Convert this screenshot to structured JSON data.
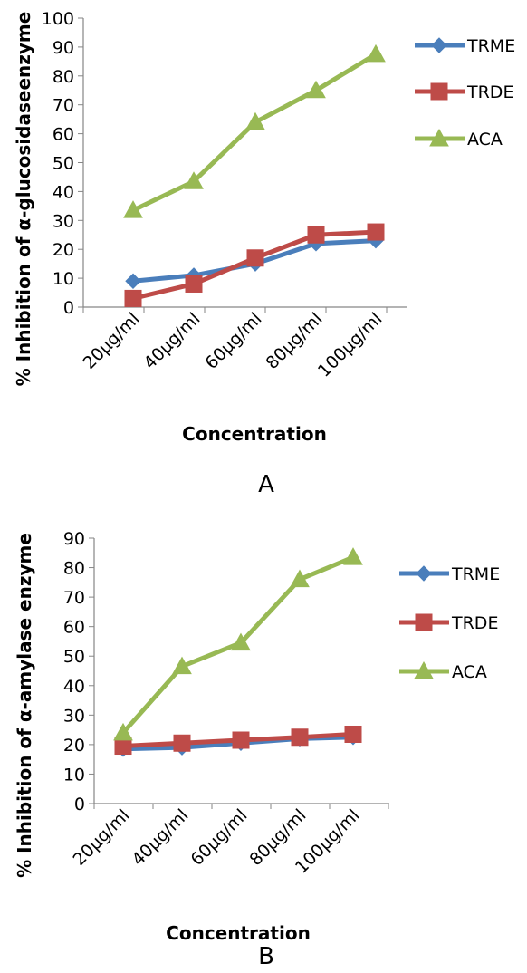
{
  "chart_data": [
    {
      "type": "line",
      "categories": [
        "20µg/ml",
        "40µg/ml",
        "60µg/ml",
        "80µg/ml",
        "100µg/ml"
      ],
      "series": [
        {
          "name": "TRME",
          "values": [
            9,
            11,
            15,
            22,
            23
          ],
          "color": "#4a7ebb",
          "marker": "diamond"
        },
        {
          "name": "TRDE",
          "values": [
            3,
            8,
            17,
            25,
            26
          ],
          "color": "#be4b48",
          "marker": "square"
        },
        {
          "name": "ACA",
          "values": [
            33.5,
            43.5,
            64,
            75,
            87.5
          ],
          "color": "#98b954",
          "marker": "triangle"
        }
      ],
      "xlabel": "Concentration",
      "ylabel": "% Inhibition of α-glucosidaseenzyme",
      "ylim": [
        0,
        100
      ],
      "yticks": [
        0,
        10,
        20,
        30,
        40,
        50,
        60,
        70,
        80,
        90,
        100
      ],
      "panel_label": "A",
      "legend_position": "right",
      "grid": false
    },
    {
      "type": "line",
      "categories": [
        "20µg/ml",
        "40µg/ml",
        "60µg/ml",
        "80µg/ml",
        "100µg/ml"
      ],
      "series": [
        {
          "name": "TRME",
          "values": [
            18.5,
            19,
            20.5,
            22,
            22.5
          ],
          "color": "#4a7ebb",
          "marker": "diamond"
        },
        {
          "name": "TRDE",
          "values": [
            19.5,
            20.5,
            21.5,
            22.5,
            23.5
          ],
          "color": "#be4b48",
          "marker": "square"
        },
        {
          "name": "ACA",
          "values": [
            24,
            46.5,
            54.5,
            76,
            83.5
          ],
          "color": "#98b954",
          "marker": "triangle"
        }
      ],
      "xlabel": "Concentration",
      "ylabel": "% Inhibition of α-amylase enzyme",
      "ylim": [
        0,
        90
      ],
      "yticks": [
        0,
        10,
        20,
        30,
        40,
        50,
        60,
        70,
        80,
        90
      ],
      "panel_label": "B",
      "legend_position": "right",
      "grid": false
    }
  ]
}
